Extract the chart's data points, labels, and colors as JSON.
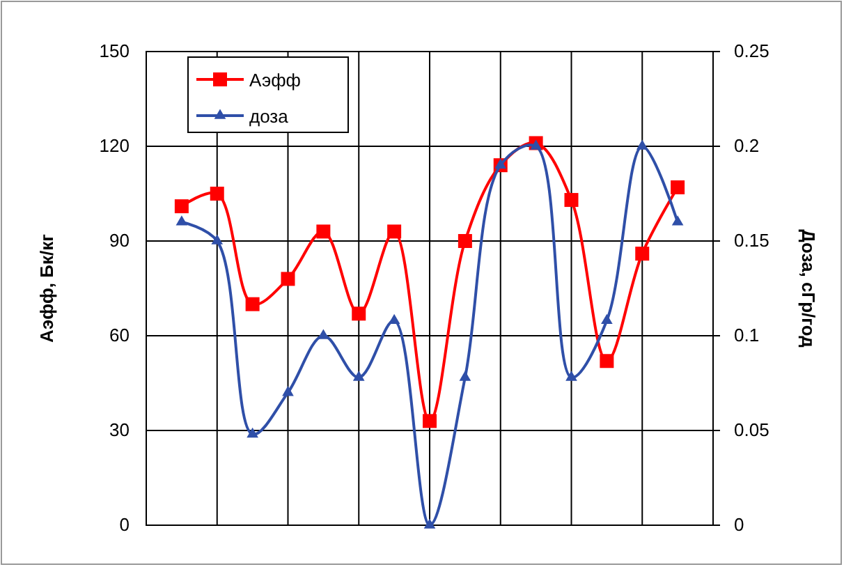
{
  "chart_data": {
    "type": "line",
    "ylabel": "Аэфф, Бк/кг",
    "y2label": "Доза, сГр/год",
    "categories": [
      null,
      null,
      null,
      null,
      null,
      null,
      null,
      null,
      null,
      null,
      null,
      null,
      null,
      null,
      null
    ],
    "series": [
      {
        "name": "Аэфф",
        "color": "#ff0000",
        "marker": "square",
        "values": [
          101,
          105,
          70,
          78,
          93,
          67,
          93,
          33,
          90,
          114,
          121,
          103,
          52,
          86,
          107
        ]
      },
      {
        "name": "доза",
        "color": "#2f4fa8",
        "marker": "triangle",
        "axis": "y2",
        "values": [
          0.16,
          0.15,
          0.048,
          0.07,
          0.1,
          0.078,
          0.108,
          0,
          0.078,
          0.19,
          0.2,
          0.078,
          0.108,
          0.2,
          0.16
        ]
      }
    ],
    "ylim": [
      0,
      150
    ],
    "yticks": [
      0,
      30,
      60,
      90,
      120,
      150
    ],
    "y2lim": [
      0,
      0.25
    ],
    "y2ticks": [
      0,
      0.05,
      0.1,
      0.15,
      0.2,
      0.25
    ],
    "grid": true,
    "legend": "top left",
    "line_style": "solid"
  }
}
